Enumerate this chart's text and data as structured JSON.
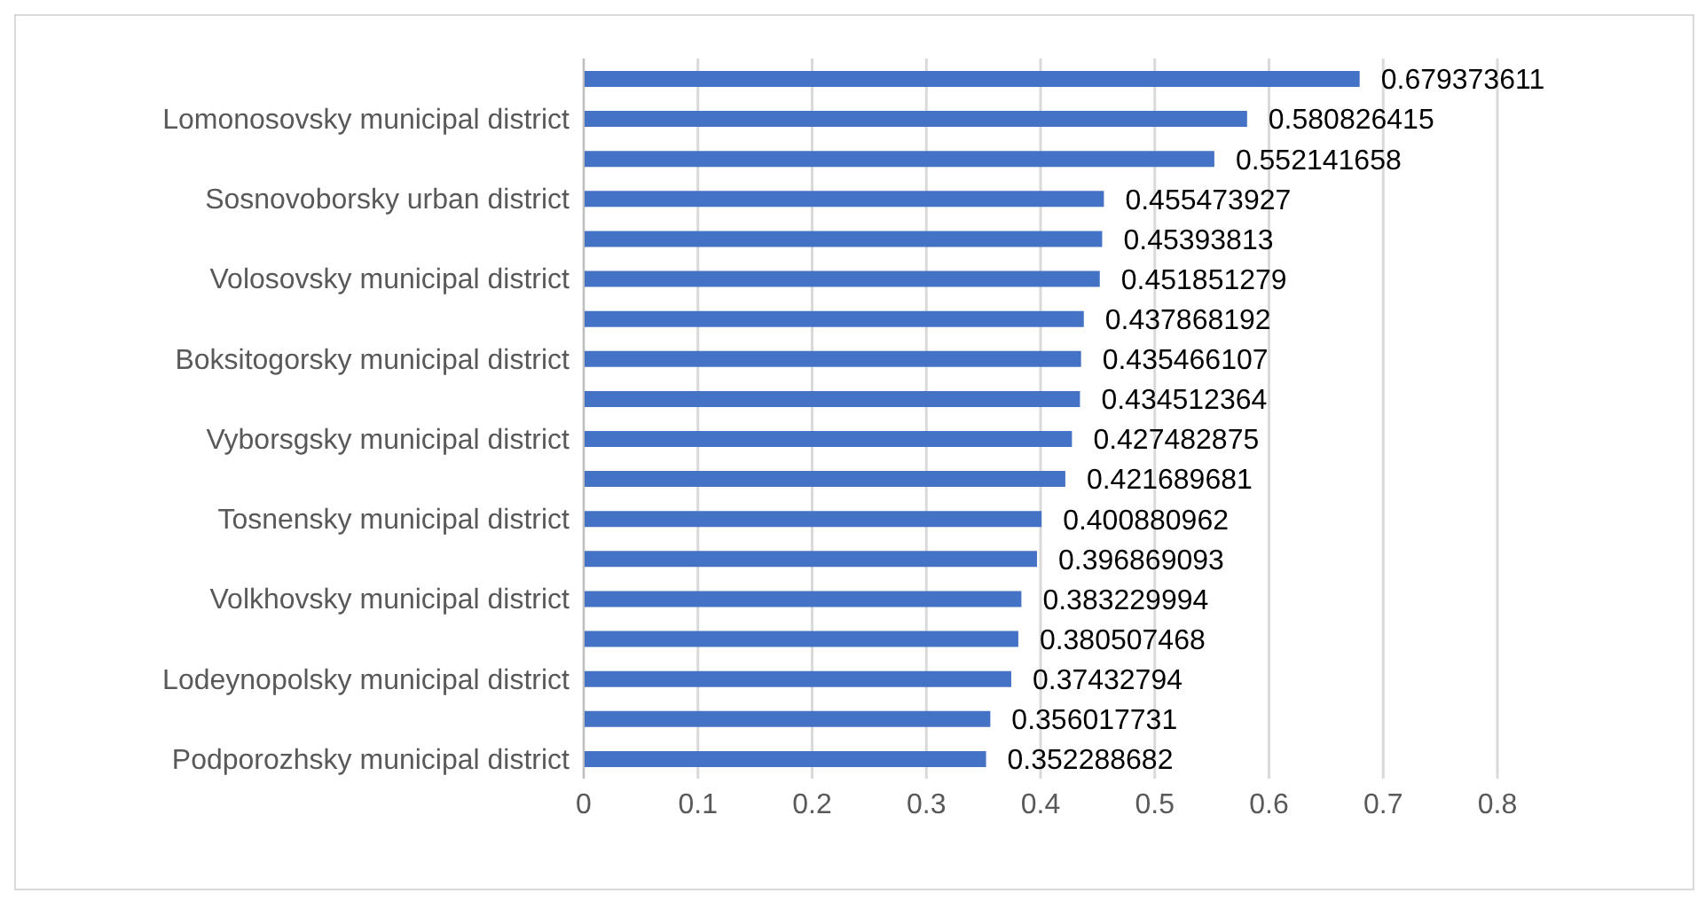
{
  "chart_data": {
    "type": "bar",
    "orientation": "horizontal",
    "categories": [
      null,
      "Lomonosovsky municipal district",
      null,
      "Sosnovoborsky urban district",
      null,
      "Volosovsky municipal district",
      null,
      "Boksitogorsky municipal district",
      null,
      "Vyborsgsky municipal district",
      null,
      "Tosnensky municipal district",
      null,
      "Volkhovsky municipal district",
      null,
      "Lodeynopolsky municipal district",
      null,
      "Podporozhsky municipal district"
    ],
    "values": [
      0.679373611,
      0.580826415,
      0.552141658,
      0.455473927,
      0.45393813,
      0.451851279,
      0.437868192,
      0.435466107,
      0.434512364,
      0.427482875,
      0.421689681,
      0.400880962,
      0.396869093,
      0.383229994,
      0.380507468,
      0.37432794,
      0.356017731,
      0.352288682
    ],
    "color": "#4472c4",
    "xlim": [
      0,
      0.8
    ],
    "xticks": [
      0,
      0.1,
      0.2,
      0.3,
      0.4,
      0.5,
      0.6,
      0.7,
      0.8
    ],
    "grid": "x",
    "data_labels": true,
    "legend": false
  }
}
